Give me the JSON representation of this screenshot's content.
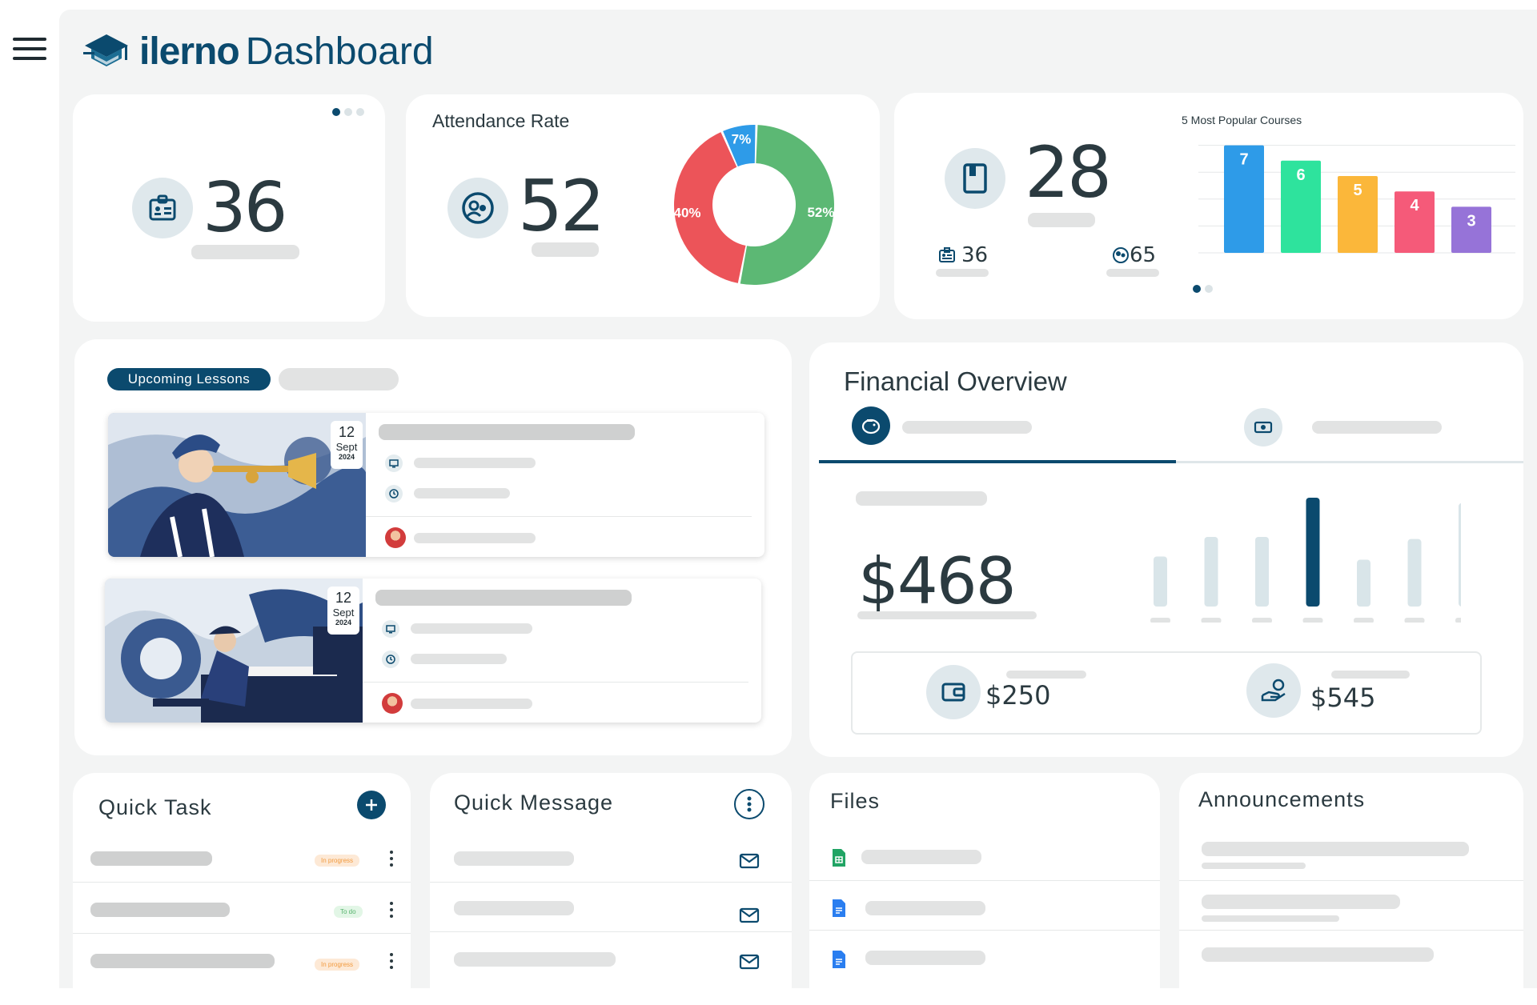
{
  "app": {
    "logo_text": "ilerno",
    "title": "Dashboard"
  },
  "stats": {
    "students_total": "36",
    "attendance": {
      "title": "Attendance Rate",
      "value": "52",
      "slices": [
        {
          "label": "52%",
          "value": 52,
          "color": "#5cb874"
        },
        {
          "label": "40%",
          "value": 40,
          "color": "#ec5459"
        },
        {
          "label": "7%",
          "value": 7,
          "color": "#2e9be8"
        }
      ]
    },
    "courses": {
      "value": "28",
      "sub_left": "36",
      "sub_right": "65"
    }
  },
  "chart_data": {
    "type": "bar",
    "title": "5 Most Popular Courses",
    "categories": [
      "",
      "",
      "",
      "",
      ""
    ],
    "values": [
      7,
      6,
      5,
      4,
      3
    ],
    "colors": [
      "#2e9be8",
      "#2ee39d",
      "#fbb73a",
      "#f55a79",
      "#9673d8"
    ],
    "ylim": [
      0,
      7.5
    ],
    "grid": true
  },
  "lessons": {
    "tab_active": "Upcoming Lessons",
    "items": [
      {
        "day": "12",
        "month": "Sept",
        "year": "2024",
        "subject": "trumpet"
      },
      {
        "day": "12",
        "month": "Sept",
        "year": "2024",
        "subject": "piano"
      }
    ]
  },
  "financial": {
    "title": "Financial Overview",
    "amount": "$468",
    "bars": [
      0.46,
      0.64,
      0.64,
      1.0,
      0.43,
      0.62,
      0.95
    ],
    "highlight_index": 3,
    "sub_left": "$250",
    "sub_right": "$545"
  },
  "quick_task": {
    "title": "Quick Task",
    "items": [
      {
        "status": "In progress",
        "type": "prog"
      },
      {
        "status": "To do",
        "type": "todo"
      },
      {
        "status": "In progress",
        "type": "prog"
      }
    ]
  },
  "quick_message": {
    "title": "Quick Message"
  },
  "files": {
    "title": "Files"
  },
  "announcements": {
    "title": "Announcements"
  },
  "colors": {
    "brand": "#0b4a6e",
    "background": "#f3f4f4",
    "skeleton": "#e2e3e3"
  }
}
